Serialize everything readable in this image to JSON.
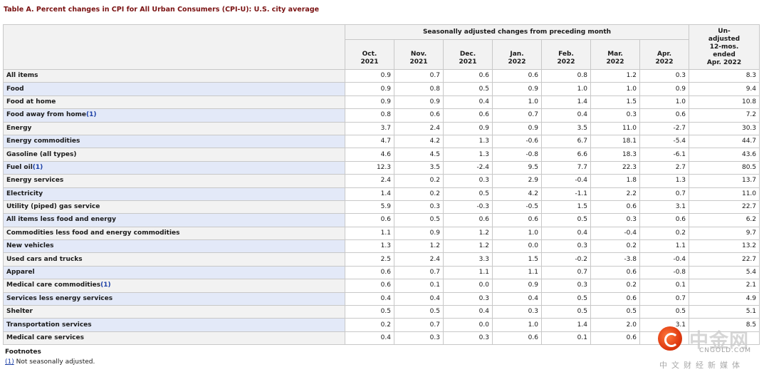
{
  "caption": "Table A. Percent changes in CPI for All Urban Consumers (CPI-U): U.S. city average",
  "header": {
    "group_label": "Seasonally adjusted changes from preceding month",
    "unadjusted_label": [
      "Un-",
      "adjusted",
      "12-mos.",
      "ended",
      "Apr. 2022"
    ],
    "months": [
      [
        "Oct.",
        "2021"
      ],
      [
        "Nov.",
        "2021"
      ],
      [
        "Dec.",
        "2021"
      ],
      [
        "Jan.",
        "2022"
      ],
      [
        "Feb.",
        "2022"
      ],
      [
        "Mar.",
        "2022"
      ],
      [
        "Apr.",
        "2022"
      ]
    ]
  },
  "rows": [
    {
      "label": "All items",
      "level": 0,
      "fn": "",
      "values": [
        "0.9",
        "0.7",
        "0.6",
        "0.6",
        "0.8",
        "1.2",
        "0.3",
        "8.3"
      ]
    },
    {
      "label": "Food",
      "level": 1,
      "fn": "",
      "values": [
        "0.9",
        "0.8",
        "0.5",
        "0.9",
        "1.0",
        "1.0",
        "0.9",
        "9.4"
      ]
    },
    {
      "label": "Food at home",
      "level": 2,
      "fn": "",
      "values": [
        "0.9",
        "0.9",
        "0.4",
        "1.0",
        "1.4",
        "1.5",
        "1.0",
        "10.8"
      ]
    },
    {
      "label": "Food away from home",
      "level": 2,
      "fn": "(1)",
      "values": [
        "0.8",
        "0.6",
        "0.6",
        "0.7",
        "0.4",
        "0.3",
        "0.6",
        "7.2"
      ]
    },
    {
      "label": "Energy",
      "level": 1,
      "fn": "",
      "values": [
        "3.7",
        "2.4",
        "0.9",
        "0.9",
        "3.5",
        "11.0",
        "-2.7",
        "30.3"
      ]
    },
    {
      "label": "Energy commodities",
      "level": 2,
      "fn": "",
      "values": [
        "4.7",
        "4.2",
        "1.3",
        "-0.6",
        "6.7",
        "18.1",
        "-5.4",
        "44.7"
      ]
    },
    {
      "label": "Gasoline (all types)",
      "level": 3,
      "fn": "",
      "values": [
        "4.6",
        "4.5",
        "1.3",
        "-0.8",
        "6.6",
        "18.3",
        "-6.1",
        "43.6"
      ]
    },
    {
      "label": "Fuel oil",
      "level": 3,
      "fn": "(1)",
      "values": [
        "12.3",
        "3.5",
        "-2.4",
        "9.5",
        "7.7",
        "22.3",
        "2.7",
        "80.5"
      ]
    },
    {
      "label": "Energy services",
      "level": 2,
      "fn": "",
      "values": [
        "2.4",
        "0.2",
        "0.3",
        "2.9",
        "-0.4",
        "1.8",
        "1.3",
        "13.7"
      ]
    },
    {
      "label": "Electricity",
      "level": 3,
      "fn": "",
      "values": [
        "1.4",
        "0.2",
        "0.5",
        "4.2",
        "-1.1",
        "2.2",
        "0.7",
        "11.0"
      ]
    },
    {
      "label": "Utility (piped) gas service",
      "level": 3,
      "fn": "",
      "values": [
        "5.9",
        "0.3",
        "-0.3",
        "-0.5",
        "1.5",
        "0.6",
        "3.1",
        "22.7"
      ]
    },
    {
      "label": "All items less food and energy",
      "level": 1,
      "fn": "",
      "values": [
        "0.6",
        "0.5",
        "0.6",
        "0.6",
        "0.5",
        "0.3",
        "0.6",
        "6.2"
      ]
    },
    {
      "label": "Commodities less food and energy commodities",
      "level": 2,
      "fn": "",
      "values": [
        "1.1",
        "0.9",
        "1.2",
        "1.0",
        "0.4",
        "-0.4",
        "0.2",
        "9.7"
      ]
    },
    {
      "label": "New vehicles",
      "level": 3,
      "fn": "",
      "values": [
        "1.3",
        "1.2",
        "1.2",
        "0.0",
        "0.3",
        "0.2",
        "1.1",
        "13.2"
      ]
    },
    {
      "label": "Used cars and trucks",
      "level": 3,
      "fn": "",
      "values": [
        "2.5",
        "2.4",
        "3.3",
        "1.5",
        "-0.2",
        "-3.8",
        "-0.4",
        "22.7"
      ]
    },
    {
      "label": "Apparel",
      "level": 3,
      "fn": "",
      "values": [
        "0.6",
        "0.7",
        "1.1",
        "1.1",
        "0.7",
        "0.6",
        "-0.8",
        "5.4"
      ]
    },
    {
      "label": "Medical care commodities",
      "level": 3,
      "fn": "(1)",
      "values": [
        "0.6",
        "0.1",
        "0.0",
        "0.9",
        "0.3",
        "0.2",
        "0.1",
        "2.1"
      ]
    },
    {
      "label": "Services less energy services",
      "level": 2,
      "fn": "",
      "values": [
        "0.4",
        "0.4",
        "0.3",
        "0.4",
        "0.5",
        "0.6",
        "0.7",
        "4.9"
      ]
    },
    {
      "label": "Shelter",
      "level": 3,
      "fn": "",
      "values": [
        "0.5",
        "0.5",
        "0.4",
        "0.3",
        "0.5",
        "0.5",
        "0.5",
        "5.1"
      ]
    },
    {
      "label": "Transportation services",
      "level": 3,
      "fn": "",
      "values": [
        "0.2",
        "0.7",
        "0.0",
        "1.0",
        "1.4",
        "2.0",
        "3.1",
        "8.5"
      ]
    },
    {
      "label": "Medical care services",
      "level": 3,
      "fn": "",
      "values": [
        "0.4",
        "0.3",
        "0.3",
        "0.6",
        "0.1",
        "0.6",
        "",
        ""
      ]
    }
  ],
  "footnotes": {
    "title": "Footnotes",
    "marker": "(1)",
    "text": " Not seasonally adjusted."
  },
  "watermark": {
    "brand_cn": "中金网",
    "brand_en": "CNGOLD.COM",
    "tagline": "中文财经新媒体",
    "icon": "cngold-logo-icon"
  }
}
